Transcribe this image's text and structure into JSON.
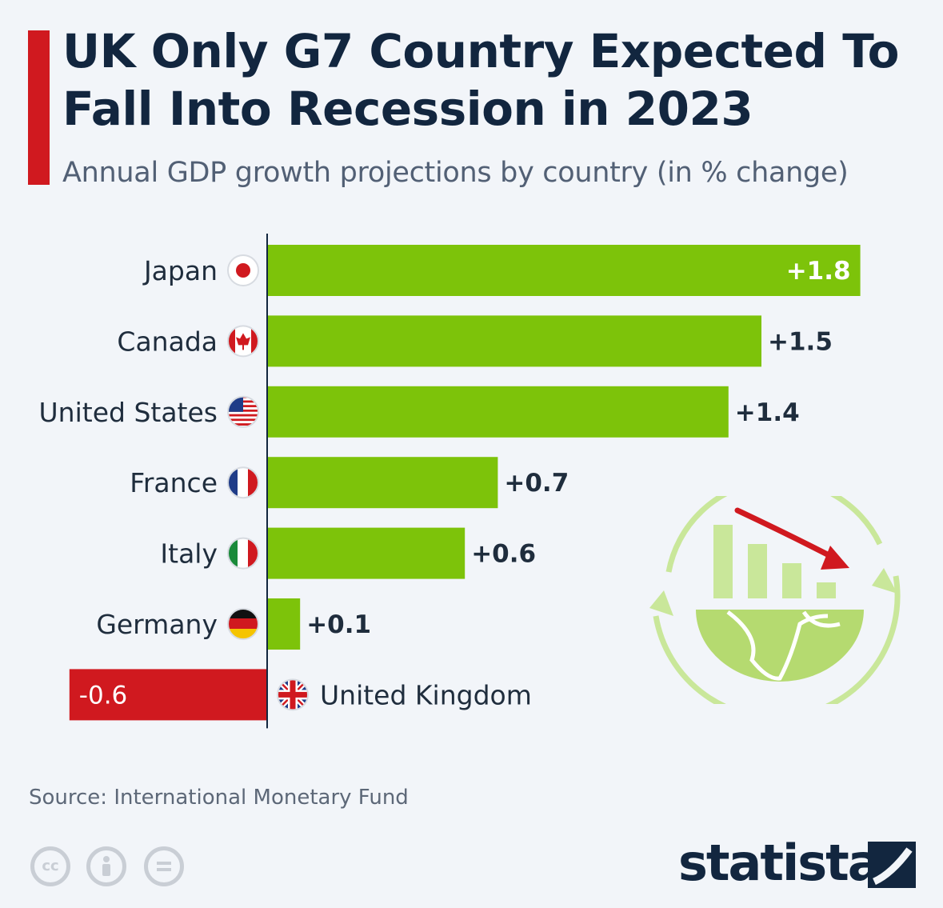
{
  "header": {
    "title": "UK Only G7 Country Expected To Fall Into Recession in 2023",
    "subtitle": "Annual GDP growth projections by country (in % change)"
  },
  "chart_data": {
    "type": "bar",
    "orientation": "horizontal",
    "title": "UK Only G7 Country Expected To Fall Into Recession in 2023",
    "subtitle": "Annual GDP growth projections by country (in % change)",
    "categories": [
      "Japan",
      "Canada",
      "United States",
      "France",
      "Italy",
      "Germany",
      "United Kingdom"
    ],
    "values": [
      1.8,
      1.5,
      1.4,
      0.7,
      0.6,
      0.1,
      -0.6
    ],
    "labels": [
      "+1.8",
      "+1.5",
      "+1.4",
      "+0.7",
      "+0.6",
      "+0.1",
      "-0.6"
    ],
    "xlim": [
      -0.6,
      1.8
    ],
    "positive_color": "#7dc30a",
    "negative_color": "#d0191f",
    "grid": false,
    "legend": "none"
  },
  "footer": {
    "source": "Source: International Monetary Fund",
    "brand": "statista",
    "license_icons": [
      "cc-icon",
      "attribution-icon",
      "no-derivatives-icon"
    ]
  },
  "colors": {
    "accent": "#d0191f",
    "title": "#12263f",
    "background": "#f2f5f9",
    "label_dark": "#1f2d3d",
    "label_light": "#ffffff"
  }
}
